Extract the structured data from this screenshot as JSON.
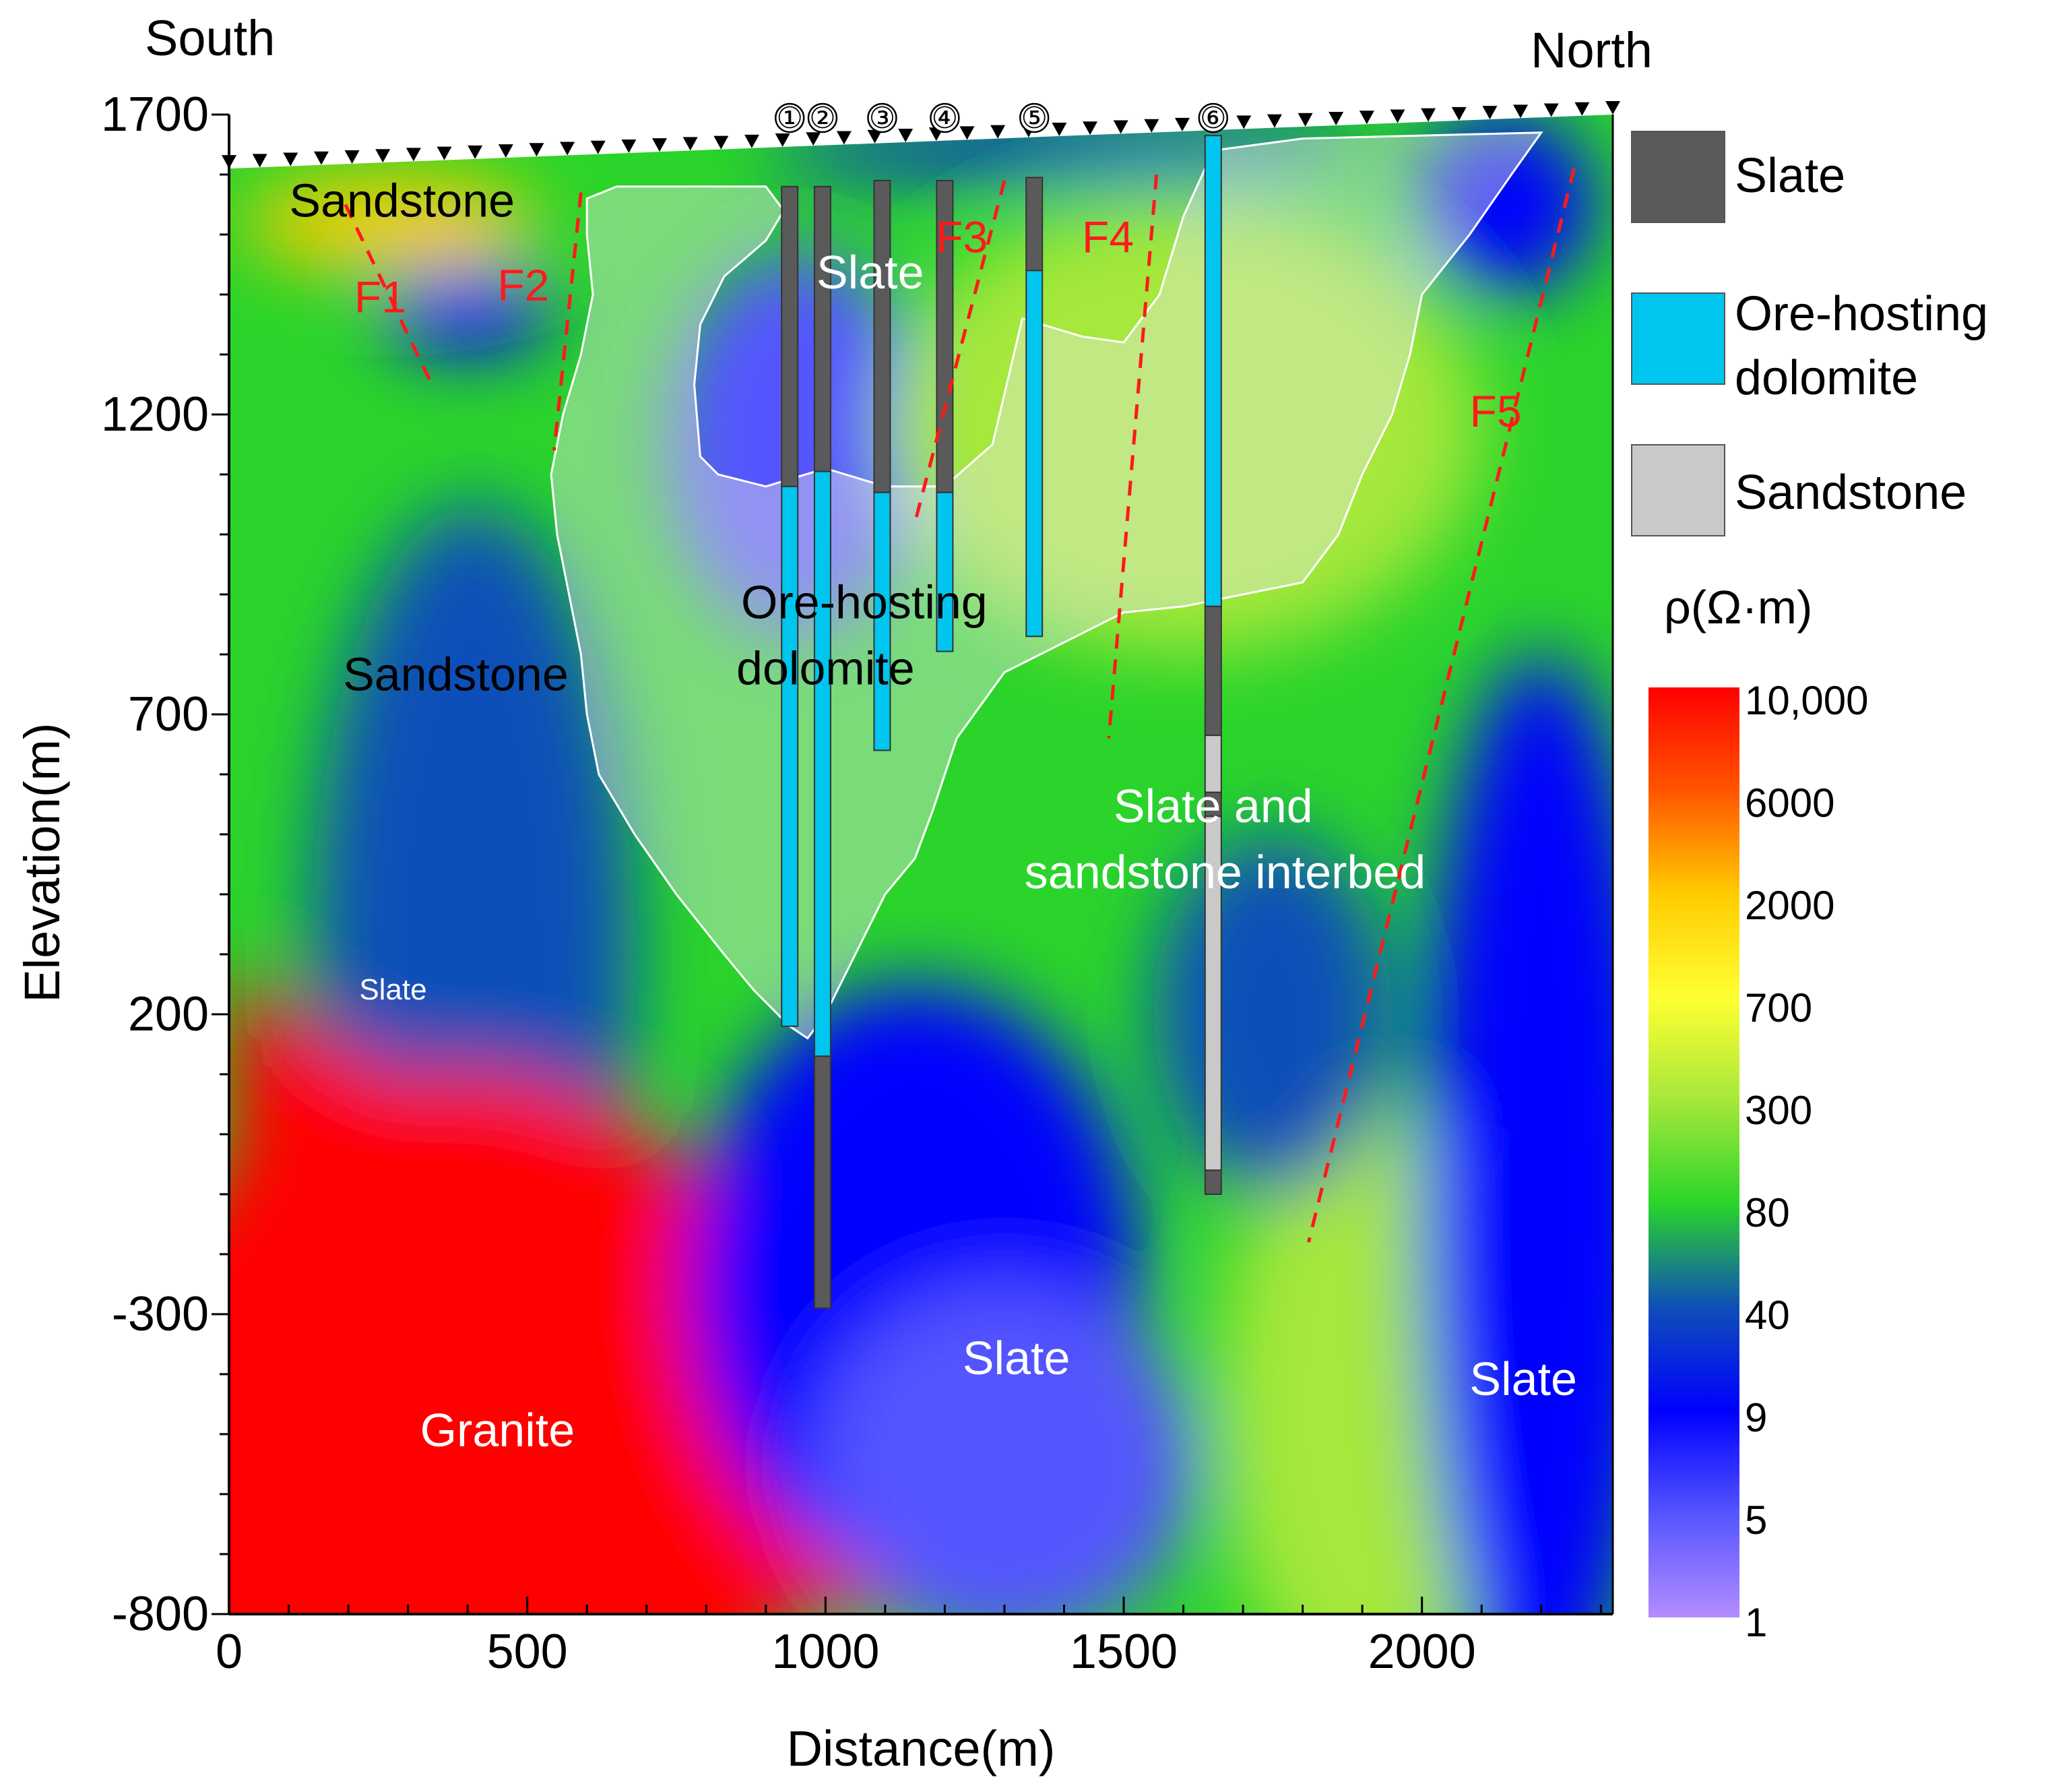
{
  "chart_data": {
    "type": "heatmap",
    "xlabel": "Distance(m)",
    "ylabel": "Elevation(m)",
    "xlim": [
      0,
      2320
    ],
    "ylim": [
      -800,
      1700
    ],
    "x_ticks": [
      {
        "value": 0,
        "label": "0"
      },
      {
        "value": 500,
        "label": "500"
      },
      {
        "value": 1000,
        "label": "1000"
      },
      {
        "value": 1500,
        "label": "1500"
      },
      {
        "value": 2000,
        "label": "2000"
      }
    ],
    "y_ticks": [
      {
        "value": 1700,
        "label": "1700"
      },
      {
        "value": 1200,
        "label": "1200"
      },
      {
        "value": 700,
        "label": "700"
      },
      {
        "value": 200,
        "label": "200"
      },
      {
        "value": -300,
        "label": "-300"
      },
      {
        "value": -800,
        "label": "-800"
      }
    ],
    "directions": {
      "left": "South",
      "right": "North"
    },
    "colorbar": {
      "title": "ρ(Ω·m)",
      "labels": [
        "10,000",
        "6000",
        "2000",
        "700",
        "300",
        "80",
        "40",
        "9",
        "5",
        "1"
      ],
      "colors": [
        "#ff0000",
        "#ff5500",
        "#ffcc00",
        "#ffff33",
        "#a6e83a",
        "#2ad42a",
        "#0f4fb8",
        "#0000ff",
        "#5555ff",
        "#b38cff"
      ]
    },
    "legend": [
      {
        "label": "Slate",
        "color": "#5a5a5a"
      },
      {
        "label": "Ore-hosting dolomite",
        "color": "#00c5ee"
      },
      {
        "label": "Sandstone",
        "color": "#c9c9c9"
      }
    ],
    "resistivity_bodies": [
      {
        "shape": "ellipse",
        "cx": 410,
        "cy": 300,
        "rx": 270,
        "ry": 750,
        "level": 6
      },
      {
        "shape": "ellipse",
        "cx": 380,
        "cy": -550,
        "rx": 600,
        "ry": 650,
        "level": 0
      },
      {
        "shape": "polygon",
        "level": 0,
        "points": [
          [
            0,
            280
          ],
          [
            120,
            180
          ],
          [
            300,
            80
          ],
          [
            420,
            100
          ],
          [
            560,
            -30
          ],
          [
            820,
            -180
          ],
          [
            950,
            -300
          ],
          [
            1140,
            -560
          ],
          [
            1300,
            -800
          ],
          [
            0,
            -800
          ]
        ]
      },
      {
        "shape": "ellipse",
        "cx": 950,
        "cy": 1150,
        "rx": 220,
        "ry": 320,
        "level": 8
      },
      {
        "shape": "ellipse",
        "cx": 1600,
        "cy": 1180,
        "rx": 500,
        "ry": 380,
        "level": 4
      },
      {
        "shape": "ellipse",
        "cx": 1150,
        "cy": -250,
        "rx": 380,
        "ry": 500,
        "level": 7
      },
      {
        "shape": "ellipse",
        "cx": 1300,
        "cy": -550,
        "rx": 320,
        "ry": 300,
        "level": 8
      },
      {
        "shape": "ellipse",
        "cx": 1900,
        "cy": -450,
        "rx": 240,
        "ry": 500,
        "level": 4
      },
      {
        "shape": "ellipse",
        "cx": 2200,
        "cy": -100,
        "rx": 200,
        "ry": 900,
        "level": 7
      },
      {
        "shape": "ellipse",
        "cx": 1750,
        "cy": 200,
        "rx": 200,
        "ry": 300,
        "level": 6
      },
      {
        "shape": "ellipse",
        "cx": 270,
        "cy": 1520,
        "rx": 250,
        "ry": 80,
        "level": 2
      },
      {
        "shape": "ellipse",
        "cx": 400,
        "cy": 1370,
        "rx": 140,
        "ry": 70,
        "level": 7
      },
      {
        "shape": "ellipse",
        "cx": 900,
        "cy": 1330,
        "rx": 70,
        "ry": 100,
        "level": 8
      },
      {
        "shape": "ellipse",
        "cx": 1400,
        "cy": 1640,
        "rx": 500,
        "ry": 40,
        "level": 7
      },
      {
        "shape": "ellipse",
        "cx": 2140,
        "cy": 1550,
        "rx": 150,
        "ry": 150,
        "level": 7
      }
    ],
    "overlay_outline": [
      [
        600,
        1560
      ],
      [
        650,
        1580
      ],
      [
        900,
        1580
      ],
      [
        930,
        1540
      ],
      [
        900,
        1490
      ],
      [
        830,
        1430
      ],
      [
        790,
        1350
      ],
      [
        780,
        1250
      ],
      [
        790,
        1130
      ],
      [
        820,
        1100
      ],
      [
        900,
        1080
      ],
      [
        1000,
        1110
      ],
      [
        1100,
        1080
      ],
      [
        1200,
        1080
      ],
      [
        1280,
        1150
      ],
      [
        1330,
        1360
      ],
      [
        1430,
        1330
      ],
      [
        1500,
        1320
      ],
      [
        1560,
        1400
      ],
      [
        1600,
        1530
      ],
      [
        1650,
        1640
      ],
      [
        1800,
        1660
      ],
      [
        2200,
        1670
      ],
      [
        2150,
        1600
      ],
      [
        2080,
        1500
      ],
      [
        2000,
        1400
      ],
      [
        1980,
        1300
      ],
      [
        1950,
        1200
      ],
      [
        1900,
        1100
      ],
      [
        1860,
        1000
      ],
      [
        1800,
        920
      ],
      [
        1600,
        880
      ],
      [
        1500,
        870
      ],
      [
        1400,
        820
      ],
      [
        1300,
        770
      ],
      [
        1220,
        660
      ],
      [
        1180,
        540
      ],
      [
        1150,
        460
      ],
      [
        1100,
        400
      ],
      [
        1050,
        300
      ],
      [
        1000,
        200
      ],
      [
        970,
        160
      ],
      [
        940,
        180
      ],
      [
        880,
        240
      ],
      [
        830,
        300
      ],
      [
        750,
        400
      ],
      [
        680,
        500
      ],
      [
        620,
        600
      ],
      [
        600,
        700
      ],
      [
        590,
        800
      ],
      [
        570,
        900
      ],
      [
        550,
        1000
      ],
      [
        540,
        1100
      ],
      [
        560,
        1200
      ],
      [
        590,
        1300
      ],
      [
        610,
        1400
      ],
      [
        600,
        1500
      ]
    ],
    "drillholes": [
      {
        "id": "①",
        "x": 940,
        "segments": [
          {
            "rock": "Slate",
            "top": 1580,
            "bottom": 1080
          },
          {
            "rock": "Ore-hosting dolomite",
            "top": 1080,
            "bottom": 180
          }
        ]
      },
      {
        "id": "②",
        "x": 995,
        "segments": [
          {
            "rock": "Slate",
            "top": 1580,
            "bottom": 1105
          },
          {
            "rock": "Ore-hosting dolomite",
            "top": 1105,
            "bottom": 130
          },
          {
            "rock": "Slate",
            "top": 130,
            "bottom": -290
          }
        ]
      },
      {
        "id": "③",
        "x": 1095,
        "segments": [
          {
            "rock": "Slate",
            "top": 1590,
            "bottom": 1070
          },
          {
            "rock": "Ore-hosting dolomite",
            "top": 1070,
            "bottom": 640
          }
        ]
      },
      {
        "id": "④",
        "x": 1200,
        "segments": [
          {
            "rock": "Slate",
            "top": 1590,
            "bottom": 1070
          },
          {
            "rock": "Ore-hosting dolomite",
            "top": 1070,
            "bottom": 805
          }
        ]
      },
      {
        "id": "⑤",
        "x": 1350,
        "segments": [
          {
            "rock": "Slate",
            "top": 1595,
            "bottom": 1440
          },
          {
            "rock": "Ore-hosting dolomite",
            "top": 1440,
            "bottom": 830
          }
        ]
      },
      {
        "id": "⑥",
        "x": 1650,
        "segments": [
          {
            "rock": "Ore-hosting dolomite",
            "top": 1665,
            "bottom": 880
          },
          {
            "rock": "Slate",
            "top": 880,
            "bottom": 665
          },
          {
            "rock": "Sandstone",
            "top": 665,
            "bottom": 570
          },
          {
            "rock": "Slate",
            "top": 570,
            "bottom": 530
          },
          {
            "rock": "Sandstone",
            "top": 530,
            "bottom": -60
          },
          {
            "rock": "Slate",
            "top": -60,
            "bottom": -100
          }
        ]
      }
    ],
    "faults": [
      {
        "label": "F1",
        "points": [
          [
            195,
            1550
          ],
          [
            340,
            1250
          ]
        ],
        "label_at": [
          210,
          1370
        ]
      },
      {
        "label": "F2",
        "points": [
          [
            590,
            1570
          ],
          [
            545,
            1140
          ]
        ],
        "label_at": [
          450,
          1390
        ]
      },
      {
        "label": "F3",
        "points": [
          [
            1300,
            1590
          ],
          [
            1150,
            1020
          ]
        ],
        "label_at": [
          1185,
          1470
        ]
      },
      {
        "label": "F4",
        "points": [
          [
            1555,
            1600
          ],
          [
            1475,
            660
          ]
        ],
        "label_at": [
          1430,
          1470
        ]
      },
      {
        "label": "F5",
        "points": [
          [
            2255,
            1610
          ],
          [
            1810,
            -180
          ]
        ],
        "label_at": [
          2080,
          1180
        ]
      }
    ],
    "stations": {
      "start": 0,
      "end": 2320,
      "count": 46
    },
    "annotations": [
      {
        "text": "Sandstone",
        "x": 290,
        "y": 1530,
        "color": "#000000"
      },
      {
        "text": "Slate",
        "x": 1075,
        "y": 1410,
        "color": "#ffffff"
      },
      {
        "text": "Sandstone",
        "x": 380,
        "y": 740,
        "color": "#000000"
      },
      {
        "text": "Ore-hosting",
        "x": 1065,
        "y": 860,
        "color": "#000000"
      },
      {
        "text": "dolomite",
        "x": 1000,
        "y": 750,
        "color": "#000000"
      },
      {
        "text": "Slate and",
        "x": 1650,
        "y": 520,
        "color": "#ffffff"
      },
      {
        "text": "sandstone interbed",
        "x": 1670,
        "y": 410,
        "color": "#ffffff"
      },
      {
        "text": "Slate",
        "x": 275,
        "y": 225,
        "color": "#ffffff",
        "serif": true
      },
      {
        "text": "Slate",
        "x": 1320,
        "y": -400,
        "color": "#ffffff"
      },
      {
        "text": "Slate",
        "x": 2170,
        "y": -435,
        "color": "#ffffff"
      },
      {
        "text": "Granite",
        "x": 450,
        "y": -520,
        "color": "#ffffff"
      }
    ]
  }
}
